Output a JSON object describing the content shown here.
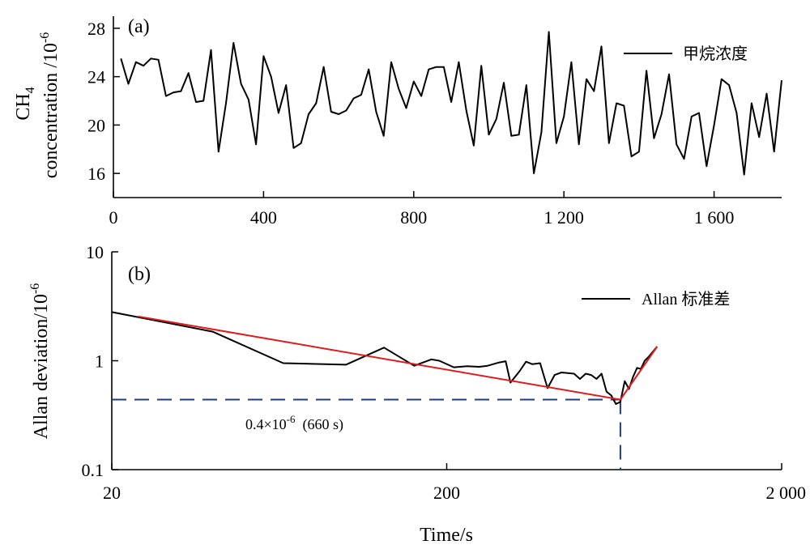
{
  "chart_data": [
    {
      "type": "line",
      "panel_label": "(a)",
      "ylabel_main": "CH",
      "ylabel_sub": "4",
      "ylabel_line2": "concentration /10",
      "ylabel_sup": "-6",
      "xlim": [
        0,
        1780
      ],
      "ylim": [
        14,
        29
      ],
      "xticks": [
        0,
        400,
        800,
        1200,
        1600
      ],
      "xtick_labels": [
        "0",
        "400",
        "800",
        "1 200",
        "1 600"
      ],
      "yticks": [
        16,
        20,
        24,
        28
      ],
      "ytick_labels": [
        "16",
        "20",
        "24",
        "28"
      ],
      "legend_position": "top-right",
      "series": [
        {
          "name": "甲烷浓度",
          "color": "#000000",
          "x": [
            20,
            40,
            60,
            80,
            100,
            120,
            140,
            160,
            180,
            200,
            220,
            240,
            260,
            280,
            300,
            320,
            340,
            360,
            380,
            400,
            420,
            440,
            460,
            480,
            500,
            520,
            540,
            560,
            580,
            600,
            620,
            640,
            660,
            680,
            700,
            720,
            740,
            760,
            780,
            800,
            820,
            840,
            860,
            880,
            900,
            920,
            940,
            960,
            980,
            1000,
            1020,
            1040,
            1060,
            1080,
            1100,
            1120,
            1140,
            1160,
            1180,
            1200,
            1220,
            1240,
            1260,
            1280,
            1300,
            1320,
            1340,
            1360,
            1380,
            1400,
            1420,
            1440,
            1460,
            1480,
            1500,
            1520,
            1540,
            1560,
            1580,
            1600,
            1620,
            1640,
            1660,
            1680,
            1700,
            1720,
            1740,
            1760,
            1780
          ],
          "y": [
            25.5,
            23.4,
            25.2,
            24.9,
            25.5,
            25.4,
            22.4,
            22.7,
            22.8,
            24.3,
            21.9,
            22.0,
            26.2,
            17.8,
            21.8,
            26.8,
            23.4,
            22.1,
            18.4,
            25.7,
            24.0,
            21.0,
            23.3,
            18.1,
            18.5,
            20.9,
            21.8,
            24.8,
            21.1,
            20.9,
            21.2,
            22.2,
            22.5,
            24.6,
            21.1,
            19.1,
            25.2,
            23.0,
            21.4,
            23.6,
            22.4,
            24.6,
            24.8,
            24.8,
            21.9,
            25.2,
            21.2,
            18.3,
            24.9,
            19.2,
            20.5,
            23.5,
            19.1,
            19.2,
            23.3,
            16.0,
            19.4,
            27.7,
            18.5,
            20.7,
            25.2,
            18.4,
            23.8,
            22.8,
            26.5,
            18.5,
            21.8,
            21.6,
            17.4,
            17.8,
            24.5,
            18.9,
            20.9,
            24.2,
            18.4,
            17.2,
            20.7,
            21.0,
            16.6,
            20.0,
            23.8,
            23.3,
            21.0,
            15.9,
            21.8,
            19.0,
            22.6,
            17.8,
            23.7
          ]
        }
      ]
    },
    {
      "type": "line",
      "panel_label": "(b)",
      "ylabel_main": "Allan deviation/10",
      "ylabel_sup": "-6",
      "xlabel": "Time/s",
      "xscale": "log",
      "yscale": "log",
      "xlim": [
        20,
        2000
      ],
      "ylim": [
        0.1,
        10
      ],
      "xticks": [
        20,
        200,
        2000
      ],
      "xtick_labels": [
        "20",
        "200",
        "2 000"
      ],
      "yticks": [
        0.1,
        1,
        10
      ],
      "ytick_labels": [
        "0.1",
        "1",
        "10"
      ],
      "legend_position": "top-right",
      "series": [
        {
          "name": "Allan 标准差",
          "color": "#000000",
          "x": [
            20,
            40,
            65,
            100,
            130,
            160,
            180,
            190,
            210,
            230,
            250,
            265,
            285,
            300,
            310,
            330,
            345,
            360,
            380,
            400,
            420,
            440,
            460,
            480,
            500,
            520,
            540,
            560,
            580,
            600,
            620,
            640,
            660,
            680,
            700,
            720,
            740,
            760,
            780,
            800,
            850
          ],
          "y": [
            2.8,
            1.85,
            0.95,
            0.92,
            1.32,
            0.9,
            1.03,
            1.0,
            0.87,
            0.89,
            0.88,
            0.9,
            0.96,
            0.99,
            0.63,
            0.8,
            0.98,
            0.93,
            0.95,
            0.56,
            0.74,
            0.78,
            0.77,
            0.76,
            0.68,
            0.76,
            0.74,
            0.68,
            0.76,
            0.52,
            0.48,
            0.4,
            0.42,
            0.65,
            0.55,
            0.71,
            0.86,
            0.84,
            1.0,
            1.08,
            1.35
          ]
        },
        {
          "name": "",
          "color": "#e31a1c",
          "x": [
            24,
            660,
            850
          ],
          "y": [
            2.55,
            0.44,
            1.35
          ]
        }
      ],
      "reference_lines": {
        "color": "#1f3a93",
        "x": 660,
        "y": 0.44
      },
      "annotation": {
        "text_main": "0.4×10",
        "text_sup": "-6",
        "text_tail": "  (660 s)"
      }
    }
  ]
}
